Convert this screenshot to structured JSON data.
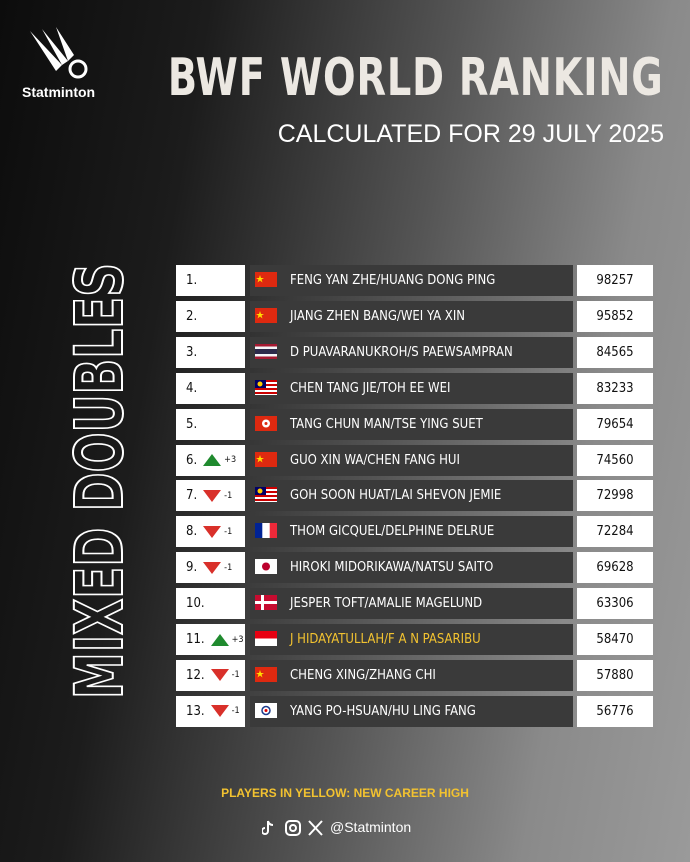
{
  "header": {
    "brand": "Statminton",
    "title": "BWF WORLD RANKING",
    "subtitle": "CALCULATED FOR 29 JULY 2025"
  },
  "side_label": "MIXED DOUBLES",
  "table": {
    "rows": [
      {
        "rank": "1.",
        "players": "FENG YAN ZHE/HUANG DONG PING",
        "points": 98257
      },
      {
        "rank": "2.",
        "players": "JIANG ZHEN BANG/WEI YA XIN",
        "points": 95852
      },
      {
        "rank": "3.",
        "players": "D PUAVARANUKROH/S PAEWSAMPRAN",
        "points": 84565
      },
      {
        "rank": "4.",
        "players": "CHEN TANG JIE/TOH EE WEI",
        "points": 83233
      },
      {
        "rank": "5.",
        "players": "TANG CHUN MAN/TSE YING SUET",
        "points": 79654
      },
      {
        "rank": "6.",
        "change": "+3",
        "players": "GUO XIN WA/CHEN FANG HUI",
        "points": 74560
      },
      {
        "rank": "7.",
        "change": "-1",
        "players": "GOH SOON HUAT/LAI SHEVON JEMIE",
        "points": 72998
      },
      {
        "rank": "8.",
        "change": "-1",
        "players": "THOM GICQUEL/DELPHINE DELRUE",
        "points": 72284
      },
      {
        "rank": "9.",
        "change": "-1",
        "players": "HIROKI MIDORIKAWA/NATSU SAITO",
        "points": 69628
      },
      {
        "rank": "10.",
        "players": "JESPER TOFT/AMALIE MAGELUND",
        "points": 63306
      },
      {
        "rank": "11.",
        "change": "+3",
        "players": "J HIDAYATULLAH/F A N PASARIBU",
        "points": 58470,
        "career_high": true
      },
      {
        "rank": "12.",
        "change": "-1",
        "players": "CHENG XING/ZHANG CHI",
        "points": 57880
      },
      {
        "rank": "13.",
        "change": "-1",
        "players": "YANG PO-HSUAN/HU LING FANG",
        "points": 56776
      }
    ]
  },
  "footer": {
    "note": "PLAYERS IN YELLOW: NEW CAREER HIGH",
    "handle": "@Statminton"
  }
}
